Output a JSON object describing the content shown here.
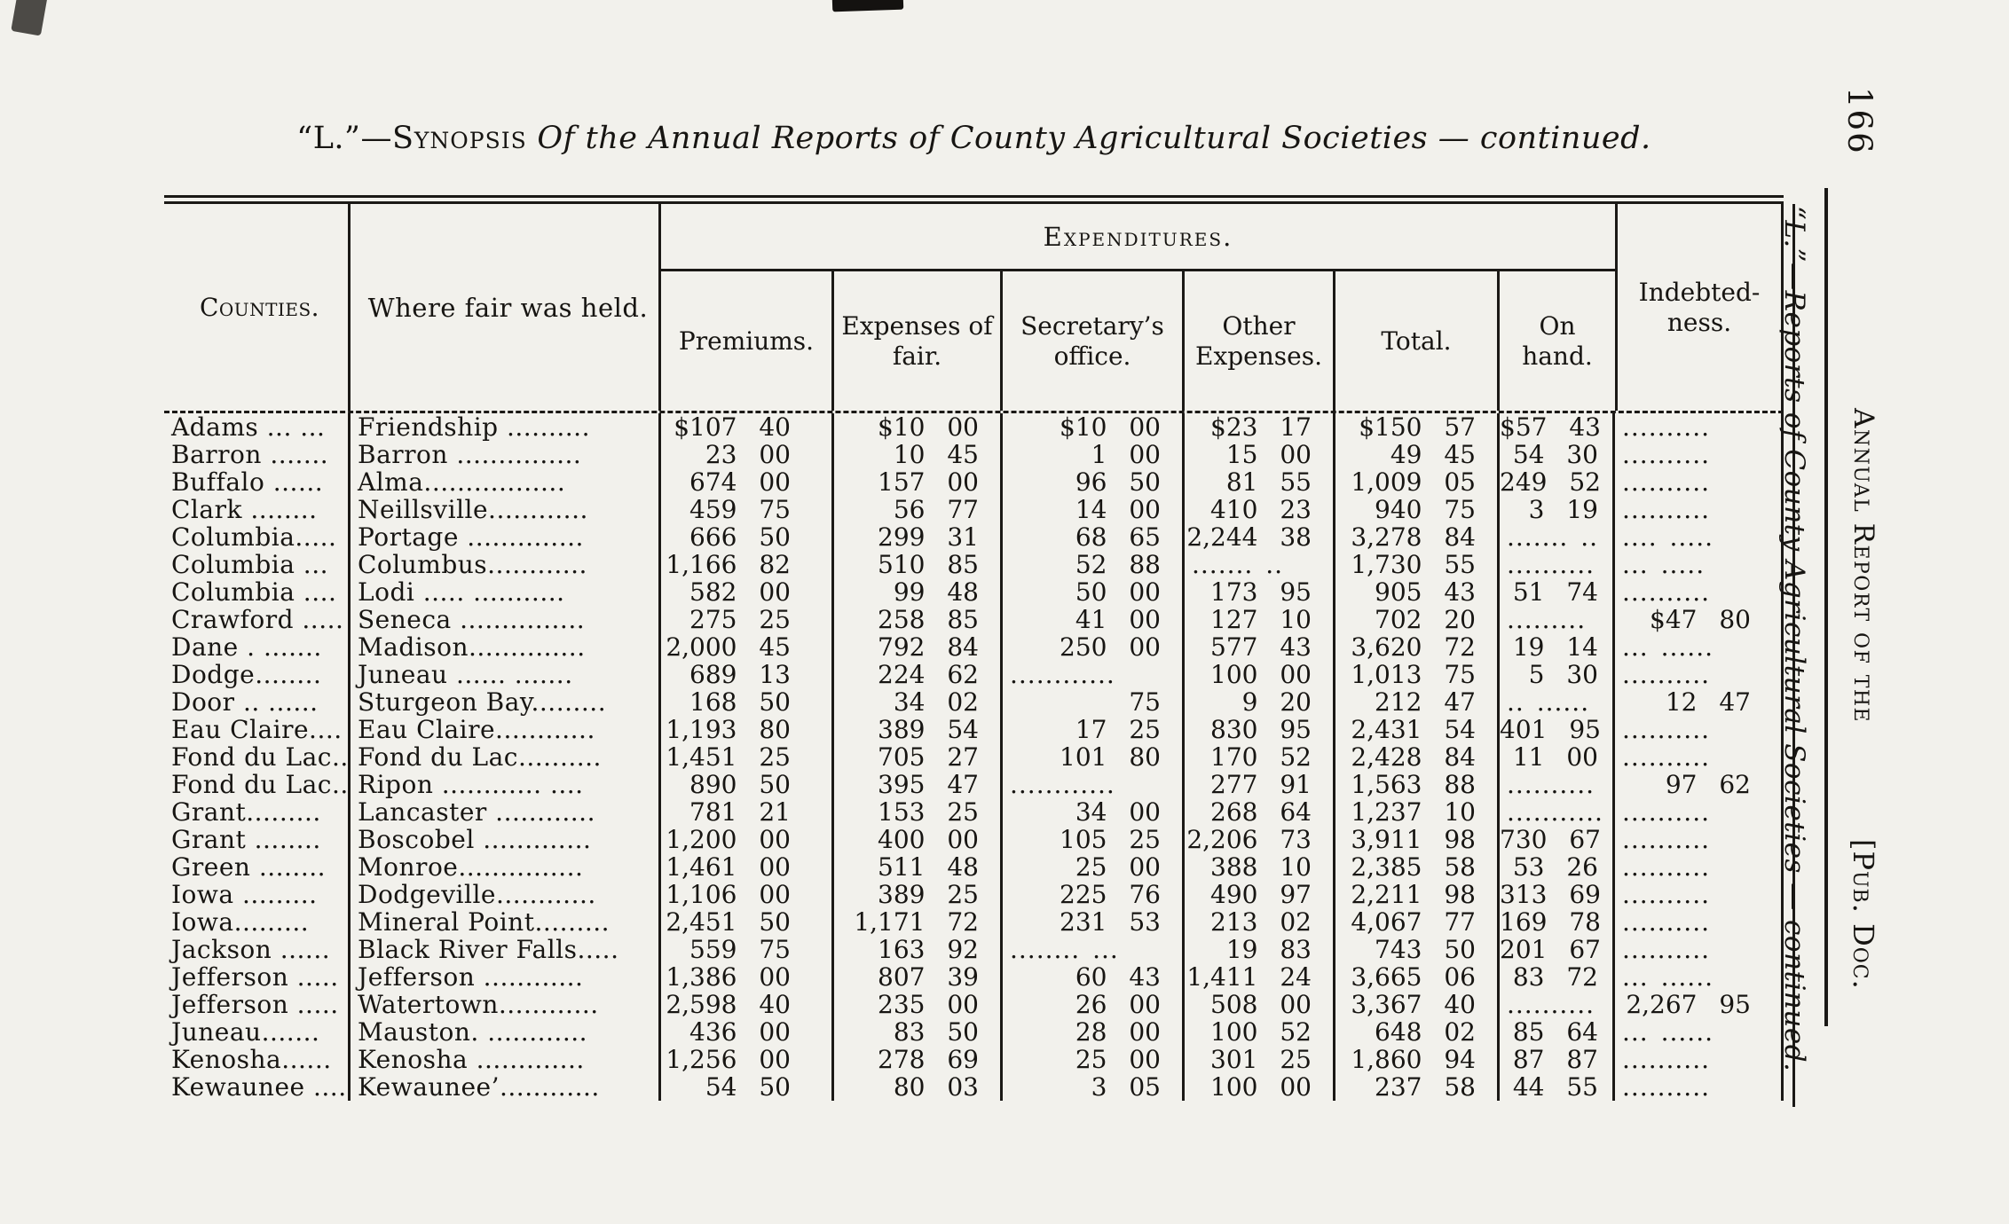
{
  "title": {
    "prefix": "“L.”—",
    "synopsis": "Synopsis",
    "rest_italic": " Of the Annual Reports of County Agricultural Societies — continued."
  },
  "sidebar": {
    "caption": "“L.”—Reports of County Agricultural Societies — continued.",
    "page_number": "166",
    "running_head": "Annual Report of the",
    "pub_doc": "[Pub. Doc."
  },
  "table": {
    "headers": {
      "counties": "Counties.",
      "where": "Where fair was held.",
      "expenditures": "Expenditures.",
      "premiums": "Premiums.",
      "expenses_fair": "Expenses of fair.",
      "secretary": "Secretary’s office.",
      "other": "Other Expenses.",
      "total": "Total.",
      "on_hand": "On hand.",
      "indebtedness": "Indebted-ness."
    },
    "rows": [
      {
        "c": "Adams ... ...",
        "w": "Friendship ..........",
        "p": "$107 40",
        "e": "$10 00",
        "s": "$10 00",
        "o": "$23 17",
        "t": "$150 57",
        "h": "$57 43",
        "i": ".........."
      },
      {
        "c": "Barron .......",
        "w": "Barron ...............",
        "p": "23 00",
        "e": "10 45",
        "s": "1 00",
        "o": "15 00",
        "t": "49 45",
        "h": "54 30",
        "i": ".........."
      },
      {
        "c": "Buffalo ......",
        "w": "Alma.................",
        "p": "674 00",
        "e": "157 00",
        "s": "96 50",
        "o": "81 55",
        "t": "1,009 05",
        "h": "249 52",
        "i": ".........."
      },
      {
        "c": "Clark ........",
        "w": "Neillsville............",
        "p": "459 75",
        "e": "56 77",
        "s": "14 00",
        "o": "410 23",
        "t": "940 75",
        "h": "3 19",
        "i": ".........."
      },
      {
        "c": "Columbia.....",
        "w": "Portage ..............",
        "p": "666 50",
        "e": "299 31",
        "s": "68 65",
        "o": "2,244 38",
        "t": "3,278 84",
        "h": "....... ..",
        "i": ".... ....."
      },
      {
        "c": "Columbia ...",
        "w": "Columbus............",
        "p": "1,166 82",
        "e": "510 85",
        "s": "52 88",
        "o": "....... ..",
        "t": "1,730 55",
        "h": "..........",
        "i": "... ....."
      },
      {
        "c": "Columbia ....",
        "w": "Lodi ..... ...........",
        "p": "582 00",
        "e": "99 48",
        "s": "50 00",
        "o": "173 95",
        "t": "905 43",
        "h": "51 74",
        "i": ".........."
      },
      {
        "c": "Crawford .....",
        "w": "Seneca ...............",
        "p": "275 25",
        "e": "258 85",
        "s": "41 00",
        "o": "127 10",
        "t": "702 20",
        "h": ".........",
        "i": "$47 80"
      },
      {
        "c": "Dane . .......",
        "w": "Madison..............",
        "p": "2,000 45",
        "e": "792 84",
        "s": "250 00",
        "o": "577 43",
        "t": "3,620 72",
        "h": "19 14",
        "i": "... ......"
      },
      {
        "c": "Dodge........",
        "w": "Juneau ...... .......",
        "p": "689 13",
        "e": "224 62",
        "s": "............",
        "o": "100 00",
        "t": "1,013 75",
        "h": "5 30",
        "i": ".........."
      },
      {
        "c": "Door .. ......",
        "w": "Sturgeon Bay.........",
        "p": "168 50",
        "e": "34 02",
        "s": "75",
        "o": "9 20",
        "t": "212 47",
        "h": ".. ......",
        "i": "12 47"
      },
      {
        "c": "Eau Claire....",
        "w": "Eau Claire............",
        "p": "1,193 80",
        "e": "389 54",
        "s": "17 25",
        "o": "830 95",
        "t": "2,431 54",
        "h": "401 95",
        "i": ".........."
      },
      {
        "c": "Fond du Lac..",
        "w": "Fond du Lac..........",
        "p": "1,451 25",
        "e": "705 27",
        "s": "101 80",
        "o": "170 52",
        "t": "2,428 84",
        "h": "11 00",
        "i": ".........."
      },
      {
        "c": "Fond du Lac..",
        "w": "Ripon ............ ....",
        "p": "890 50",
        "e": "395 47",
        "s": "............",
        "o": "277 91",
        "t": "1,563 88",
        "h": "..........",
        "i": "97 62"
      },
      {
        "c": "Grant.........",
        "w": "Lancaster ............",
        "p": "781 21",
        "e": "153 25",
        "s": "34 00",
        "o": "268 64",
        "t": "1,237 10",
        "h": "...........",
        "i": ".........."
      },
      {
        "c": "Grant ........",
        "w": "Boscobel .............",
        "p": "1,200 00",
        "e": "400 00",
        "s": "105 25",
        "o": "2,206 73",
        "t": "3,911 98",
        "h": "730 67",
        "i": ".........."
      },
      {
        "c": "Green ........",
        "w": "Monroe...............",
        "p": "1,461 00",
        "e": "511 48",
        "s": "25 00",
        "o": "388 10",
        "t": "2,385 58",
        "h": "53 26",
        "i": ".........."
      },
      {
        "c": "Iowa .........",
        "w": "Dodgeville............",
        "p": "1,106 00",
        "e": "389 25",
        "s": "225 76",
        "o": "490 97",
        "t": "2,211 98",
        "h": "313 69",
        "i": ".........."
      },
      {
        "c": "Iowa.........",
        "w": "Mineral Point.........",
        "p": "2,451 50",
        "e": "1,171 72",
        "s": "231 53",
        "o": "213 02",
        "t": "4,067 77",
        "h": "169 78",
        "i": ".........."
      },
      {
        "c": "Jackson ......",
        "w": "Black River Falls.....",
        "p": "559 75",
        "e": "163 92",
        "s": "........ ...",
        "o": "19 83",
        "t": "743 50",
        "h": "201 67",
        "i": ".........."
      },
      {
        "c": "Jefferson .....",
        "w": "Jefferson ............",
        "p": "1,386 00",
        "e": "807 39",
        "s": "60 43",
        "o": "1,411 24",
        "t": "3,665 06",
        "h": "83 72",
        "i": "... ......"
      },
      {
        "c": "Jefferson .....",
        "w": "Watertown............",
        "p": "2,598 40",
        "e": "235 00",
        "s": "26 00",
        "o": "508 00",
        "t": "3,367 40",
        "h": "..........",
        "i": "2,267 95"
      },
      {
        "c": "Juneau.......",
        "w": "Mauston. ............",
        "p": "436 00",
        "e": "83 50",
        "s": "28 00",
        "o": "100 52",
        "t": "648 02",
        "h": "85 64",
        "i": "... ......"
      },
      {
        "c": "Kenosha......",
        "w": "Kenosha .............",
        "p": "1,256 00",
        "e": "278 69",
        "s": "25 00",
        "o": "301 25",
        "t": "1,860 94",
        "h": "87 87",
        "i": ".........."
      },
      {
        "c": "Kewaunee ....",
        "w": "Kewaunee’............",
        "p": "54 50",
        "e": "80 03",
        "s": "3 05",
        "o": "100 00",
        "t": "237 58",
        "h": "44 55",
        "i": ".........."
      }
    ]
  }
}
